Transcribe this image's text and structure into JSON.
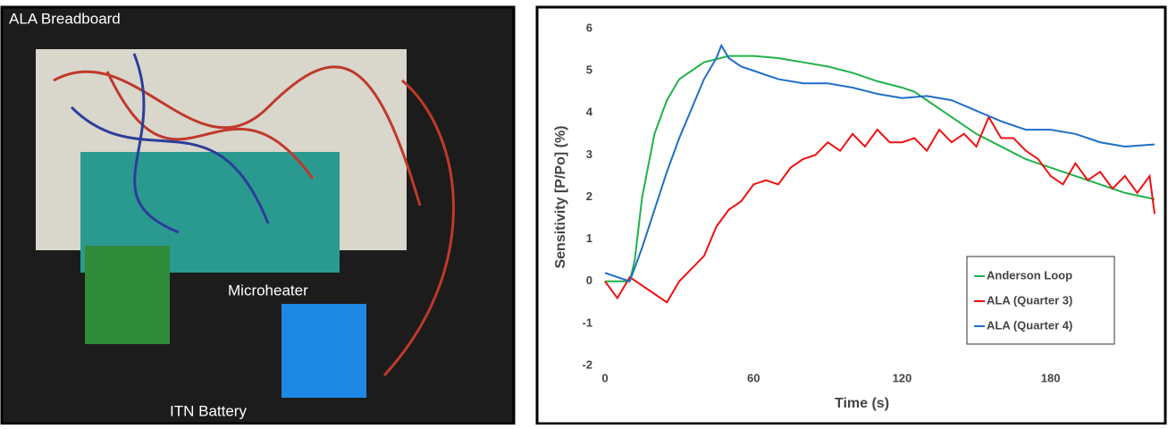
{
  "photo": {
    "labels": [
      "ALA Breadboard",
      "Microheater",
      "ITN Battery"
    ]
  },
  "chart_data": {
    "type": "line",
    "x_label": "Time (s)",
    "y_label": "Sensitivity [P/Po] (%)",
    "xlim": [
      0,
      222
    ],
    "xticks": [
      0,
      60,
      120,
      180
    ],
    "ylim": [
      -2,
      6
    ],
    "yticks": [
      -2,
      -1,
      0,
      1,
      2,
      3,
      4,
      5,
      6
    ],
    "grid": false,
    "legend": "lower right",
    "series": [
      {
        "name": "Anderson Loop",
        "color": "#22b14c",
        "x": [
          0,
          10,
          12,
          15,
          20,
          25,
          30,
          40,
          50,
          60,
          70,
          80,
          90,
          100,
          110,
          120,
          125,
          130,
          140,
          150,
          160,
          170,
          180,
          190,
          200,
          210,
          222
        ],
        "values": [
          0,
          0,
          0.5,
          2,
          3.5,
          4.3,
          4.8,
          5.2,
          5.35,
          5.35,
          5.3,
          5.2,
          5.1,
          4.95,
          4.75,
          4.6,
          4.5,
          4.3,
          3.9,
          3.5,
          3.2,
          2.9,
          2.7,
          2.5,
          2.3,
          2.1,
          1.95
        ]
      },
      {
        "name": "ALA (Quarter 3)",
        "color": "#ee1111",
        "x": [
          0,
          5,
          10,
          15,
          20,
          25,
          30,
          35,
          40,
          45,
          50,
          55,
          60,
          65,
          70,
          75,
          80,
          85,
          90,
          95,
          100,
          105,
          110,
          115,
          120,
          125,
          130,
          135,
          140,
          145,
          150,
          155,
          160,
          165,
          170,
          175,
          180,
          185,
          190,
          195,
          200,
          205,
          210,
          215,
          220,
          222
        ],
        "values": [
          0,
          -0.4,
          0.1,
          -0.1,
          -0.3,
          -0.5,
          0,
          0.3,
          0.6,
          1.3,
          1.7,
          1.9,
          2.3,
          2.4,
          2.3,
          2.7,
          2.9,
          3.0,
          3.3,
          3.1,
          3.5,
          3.2,
          3.6,
          3.3,
          3.3,
          3.4,
          3.1,
          3.6,
          3.3,
          3.5,
          3.2,
          3.9,
          3.4,
          3.4,
          3.1,
          2.9,
          2.5,
          2.3,
          2.8,
          2.4,
          2.6,
          2.2,
          2.5,
          2.1,
          2.5,
          1.6
        ]
      },
      {
        "name": "ALA (Quarter 4)",
        "color": "#1f6fc5",
        "x": [
          0,
          5,
          10,
          15,
          20,
          25,
          30,
          35,
          40,
          45,
          47,
          50,
          55,
          60,
          70,
          80,
          90,
          100,
          110,
          120,
          130,
          140,
          150,
          160,
          170,
          180,
          190,
          200,
          210,
          222
        ],
        "values": [
          0.2,
          0.1,
          0,
          0.8,
          1.7,
          2.6,
          3.4,
          4.1,
          4.8,
          5.3,
          5.6,
          5.3,
          5.1,
          5.0,
          4.8,
          4.7,
          4.7,
          4.6,
          4.45,
          4.35,
          4.4,
          4.3,
          4.05,
          3.8,
          3.6,
          3.6,
          3.5,
          3.3,
          3.2,
          3.25
        ]
      }
    ]
  }
}
